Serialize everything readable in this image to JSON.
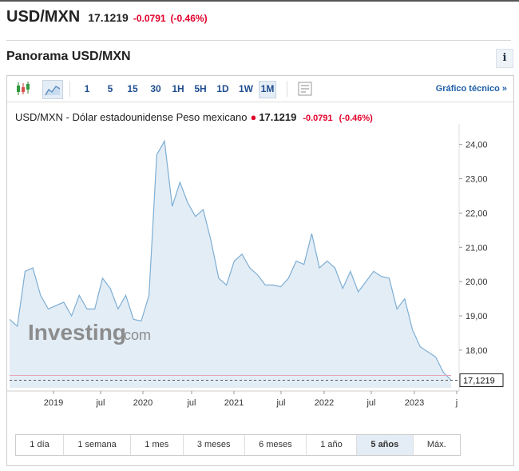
{
  "header": {
    "pair": "USD/MXN",
    "price": "17.1219",
    "change": "-0.0791",
    "change_pct": "(-0.46%)"
  },
  "panorama_title": "Panorama USD/MXN",
  "info_icon": "i",
  "toolbar": {
    "intervals": [
      {
        "label": "1",
        "active": false
      },
      {
        "label": "5",
        "active": false
      },
      {
        "label": "15",
        "active": false
      },
      {
        "label": "30",
        "active": false
      },
      {
        "label": "1H",
        "active": false
      },
      {
        "label": "5H",
        "active": false
      },
      {
        "label": "1D",
        "active": false
      },
      {
        "label": "1W",
        "active": false
      },
      {
        "label": "1M",
        "active": true
      }
    ],
    "tech_link": "Gráfico técnico »"
  },
  "chart_title": {
    "name": "USD/MXN - Dólar estadounidense Peso mexicano",
    "last": "17.1219",
    "change": "-0.0791",
    "change_pct": "(-0.46%)"
  },
  "watermark": {
    "brand": "Investing",
    "suffix": ".com"
  },
  "chart_data": {
    "type": "area",
    "series": [
      {
        "x": [
          "2018-07",
          "2018-08",
          "2018-09",
          "2018-10",
          "2018-11",
          "2018-12",
          "2019-01",
          "2019-02",
          "2019-03",
          "2019-04",
          "2019-05",
          "2019-06",
          "2019-07",
          "2019-08",
          "2019-09",
          "2019-10",
          "2019-11",
          "2019-12",
          "2020-01",
          "2020-02",
          "2020-03",
          "2020-04",
          "2020-05",
          "2020-06",
          "2020-07",
          "2020-08",
          "2020-09",
          "2020-10",
          "2020-11",
          "2020-12",
          "2021-01",
          "2021-02",
          "2021-03",
          "2021-04",
          "2021-05",
          "2021-06",
          "2021-07",
          "2021-08",
          "2021-09",
          "2021-10",
          "2021-11",
          "2021-12",
          "2022-01",
          "2022-02",
          "2022-03",
          "2022-04",
          "2022-05",
          "2022-06",
          "2022-07",
          "2022-08",
          "2022-09",
          "2022-10",
          "2022-11",
          "2022-12",
          "2023-01",
          "2023-02",
          "2023-03",
          "2023-04"
        ],
        "values": [
          18.9,
          18.7,
          20.3,
          20.4,
          19.6,
          19.2,
          19.3,
          19.4,
          19.0,
          19.6,
          19.2,
          19.2,
          20.1,
          19.8,
          19.2,
          19.6,
          18.9,
          18.85,
          19.6,
          23.7,
          24.1,
          22.2,
          22.9,
          22.3,
          21.9,
          22.1,
          21.2,
          20.1,
          19.9,
          20.6,
          20.8,
          20.4,
          20.2,
          19.9,
          19.9,
          19.85,
          20.1,
          20.6,
          20.5,
          21.4,
          20.4,
          20.6,
          20.4,
          19.8,
          20.3,
          19.7,
          20.0,
          20.3,
          20.15,
          20.1,
          19.2,
          19.5,
          18.6,
          18.1,
          17.95,
          17.8,
          17.35,
          17.1219
        ]
      }
    ],
    "x_ticks": [
      "2019",
      "jul",
      "2020",
      "jul",
      "2021",
      "jul",
      "2022",
      "jul",
      "2023",
      "j"
    ],
    "y_ticks": [
      "24,00",
      "23,00",
      "22,00",
      "21,00",
      "20,00",
      "19,00",
      "18,00"
    ],
    "last_value_label": "17,1219",
    "ylim": [
      16.9,
      24.6
    ],
    "grid": false,
    "line_color": "#7eaed3",
    "fill_color": "#e3edf6",
    "last_price_line_color": "#e9a4b4"
  },
  "range_buttons": [
    {
      "label": "1 día",
      "active": false
    },
    {
      "label": "1 semana",
      "active": false
    },
    {
      "label": "1 mes",
      "active": false
    },
    {
      "label": "3 meses",
      "active": false
    },
    {
      "label": "6 meses",
      "active": false
    },
    {
      "label": "1 año",
      "active": false
    },
    {
      "label": "5 años",
      "active": true
    },
    {
      "label": "Máx.",
      "active": false
    }
  ]
}
